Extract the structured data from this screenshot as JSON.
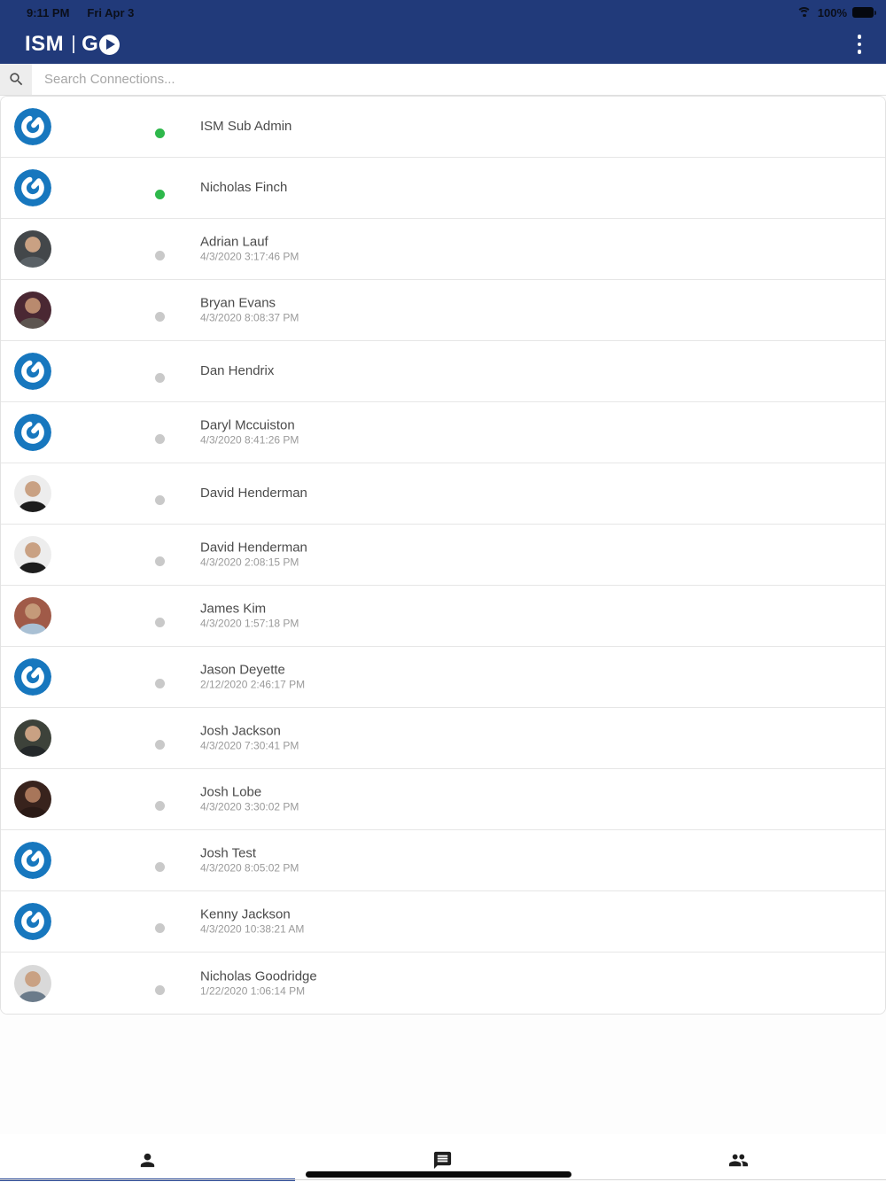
{
  "status_bar": {
    "time": "9:11 PM",
    "date": "Fri Apr 3",
    "battery_percent": "100%"
  },
  "header": {
    "logo_text": "ISM",
    "logo_go": "G",
    "menu_icon": "kebab-menu-icon"
  },
  "search": {
    "placeholder": "Search Connections..."
  },
  "colors": {
    "header_navy": "#213a7a",
    "online_green": "#2eb84b",
    "offline_gray": "#c9c9c9",
    "avatar_logo_blue": "#1777be",
    "active_tab_blue": "#2b4a96"
  },
  "connections": [
    {
      "name": "ISM Sub Admin",
      "timestamp": "",
      "online": true,
      "avatar": "logo"
    },
    {
      "name": "Nicholas Finch",
      "timestamp": "",
      "online": true,
      "avatar": "logo"
    },
    {
      "name": "Adrian Lauf",
      "timestamp": "4/3/2020 3:17:46 PM",
      "online": false,
      "avatar": "photo",
      "photo": {
        "bg": "#43474a",
        "skin": "#c9a183",
        "shirt": "#5a6166"
      }
    },
    {
      "name": "Bryan Evans",
      "timestamp": "4/3/2020 8:08:37 PM",
      "online": false,
      "avatar": "photo",
      "photo": {
        "bg": "#4a2833",
        "skin": "#b98a6e",
        "shirt": "#5d5550"
      }
    },
    {
      "name": "Dan Hendrix",
      "timestamp": "",
      "online": false,
      "avatar": "logo"
    },
    {
      "name": "Daryl Mccuiston",
      "timestamp": "4/3/2020 8:41:26 PM",
      "online": false,
      "avatar": "logo"
    },
    {
      "name": "David Henderman",
      "timestamp": "",
      "online": false,
      "avatar": "photo",
      "photo": {
        "bg": "#ededed",
        "skin": "#c9a183",
        "shirt": "#1d1d1d"
      }
    },
    {
      "name": "David Henderman",
      "timestamp": "4/3/2020 2:08:15 PM",
      "online": false,
      "avatar": "photo",
      "photo": {
        "bg": "#ededed",
        "skin": "#c9a183",
        "shirt": "#1d1d1d"
      }
    },
    {
      "name": "James Kim",
      "timestamp": "4/3/2020 1:57:18 PM",
      "online": false,
      "avatar": "photo",
      "photo": {
        "bg": "#a05a48",
        "skin": "#c59a79",
        "shirt": "#a9c0d4"
      }
    },
    {
      "name": "Jason Deyette",
      "timestamp": "2/12/2020 2:46:17 PM",
      "online": false,
      "avatar": "logo"
    },
    {
      "name": "Josh Jackson",
      "timestamp": "4/3/2020 7:30:41 PM",
      "online": false,
      "avatar": "photo",
      "photo": {
        "bg": "#3d423a",
        "skin": "#c9a183",
        "shirt": "#24282a"
      }
    },
    {
      "name": "Josh Lobe",
      "timestamp": "4/3/2020 3:30:02 PM",
      "online": false,
      "avatar": "photo",
      "photo": {
        "bg": "#38231d",
        "skin": "#a8765a",
        "shirt": "#2a1a16"
      }
    },
    {
      "name": "Josh Test",
      "timestamp": "4/3/2020 8:05:02 PM",
      "online": false,
      "avatar": "logo"
    },
    {
      "name": "Kenny Jackson",
      "timestamp": "4/3/2020 10:38:21 AM",
      "online": false,
      "avatar": "logo"
    },
    {
      "name": "Nicholas Goodridge",
      "timestamp": "1/22/2020 1:06:14 PM",
      "online": false,
      "avatar": "photo",
      "photo": {
        "bg": "#d9d9d9",
        "skin": "#c9a183",
        "shirt": "#6b7b8a"
      }
    }
  ],
  "tab_bar": {
    "tabs": [
      {
        "id": "contacts",
        "icon": "person-icon",
        "active": true
      },
      {
        "id": "chats",
        "icon": "chat-icon",
        "active": false
      },
      {
        "id": "groups",
        "icon": "people-icon",
        "active": false
      }
    ]
  }
}
